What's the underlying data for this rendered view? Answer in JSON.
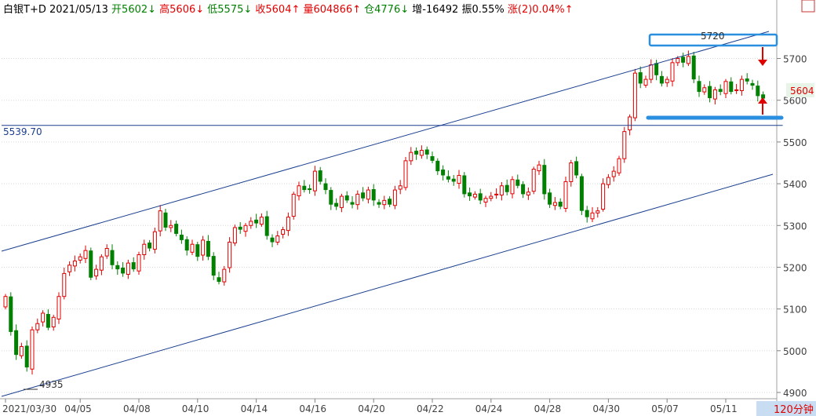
{
  "header": {
    "symbol": "白银T+D",
    "date": "2021/05/13",
    "items": [
      {
        "label": "开",
        "value": "5602",
        "arrow": "↓",
        "color": "#008000"
      },
      {
        "label": "高",
        "value": "5606",
        "arrow": "↓",
        "color": "#e00000"
      },
      {
        "label": "低",
        "value": "5575",
        "arrow": "↓",
        "color": "#008000"
      },
      {
        "label": "收",
        "value": "5604",
        "arrow": "↑",
        "color": "#e00000"
      },
      {
        "label": "量",
        "value": "604866",
        "arrow": "↑",
        "color": "#e00000"
      },
      {
        "label": "仓",
        "value": "4776",
        "arrow": "↓",
        "color": "#008000"
      },
      {
        "label": "增",
        "value": "-16492",
        "arrow": "",
        "color": "#000000"
      },
      {
        "label": "振",
        "value": "0.55%",
        "arrow": "",
        "color": "#000000"
      },
      {
        "label": "涨",
        "value": "(2)0.04%",
        "arrow": "↑",
        "color": "#e00000"
      }
    ]
  },
  "timeframe_label": "120分钟",
  "current_price_label": "5604",
  "colors": {
    "up": "#e00000",
    "down": "#008000",
    "channel": "#1a3f8f",
    "highlight": "#2b8fe0",
    "grid": "#d8d8d8"
  },
  "icons": {
    "window": "square-icon"
  },
  "chart_data": {
    "type": "candlestick",
    "y_ticks": [
      4900,
      5000,
      5100,
      5200,
      5300,
      5400,
      5500,
      5600,
      5700
    ],
    "ylim": [
      4885,
      5795
    ],
    "x_labels": [
      "2021/03/30",
      "04/05",
      "04/08",
      "04/10",
      "04/14",
      "04/16",
      "04/20",
      "04/22",
      "04/24",
      "04/28",
      "04/30",
      "05/07",
      "05/11"
    ],
    "x_label_positions": [
      0,
      14,
      25,
      36,
      47,
      58,
      69,
      80,
      91,
      102,
      113,
      124,
      135
    ],
    "bar_count": 143,
    "annotations": {
      "high_label": "5720",
      "low_label": "4935",
      "support_label": "5539.70",
      "support_value": 5539.7
    },
    "closes": [
      5130,
      5045,
      4990,
      5010,
      4960,
      5050,
      5065,
      5090,
      5055,
      5080,
      5130,
      5185,
      5205,
      5215,
      5225,
      5240,
      5175,
      5195,
      5225,
      5245,
      5205,
      5195,
      5185,
      5210,
      5195,
      5230,
      5255,
      5245,
      5285,
      5335,
      5295,
      5300,
      5280,
      5265,
      5240,
      5255,
      5225,
      5265,
      5225,
      5180,
      5165,
      5195,
      5260,
      5295,
      5290,
      5300,
      5310,
      5305,
      5320,
      5275,
      5260,
      5275,
      5290,
      5320,
      5375,
      5395,
      5385,
      5385,
      5430,
      5405,
      5385,
      5350,
      5345,
      5370,
      5360,
      5350,
      5375,
      5365,
      5385,
      5360,
      5350,
      5360,
      5350,
      5385,
      5395,
      5455,
      5475,
      5470,
      5480,
      5470,
      5455,
      5430,
      5420,
      5410,
      5405,
      5420,
      5375,
      5370,
      5375,
      5360,
      5365,
      5370,
      5375,
      5395,
      5380,
      5410,
      5395,
      5375,
      5380,
      5435,
      5445,
      5375,
      5350,
      5355,
      5345,
      5405,
      5450,
      5420,
      5335,
      5320,
      5330,
      5335,
      5400,
      5415,
      5430,
      5460,
      5525,
      5560,
      5665,
      5640,
      5650,
      5685,
      5660,
      5640,
      5650,
      5690,
      5700,
      5690,
      5705,
      5650,
      5620,
      5630,
      5605,
      5625,
      5620,
      5645,
      5620,
      5625,
      5650,
      5645,
      5635,
      5610,
      5604
    ]
  }
}
